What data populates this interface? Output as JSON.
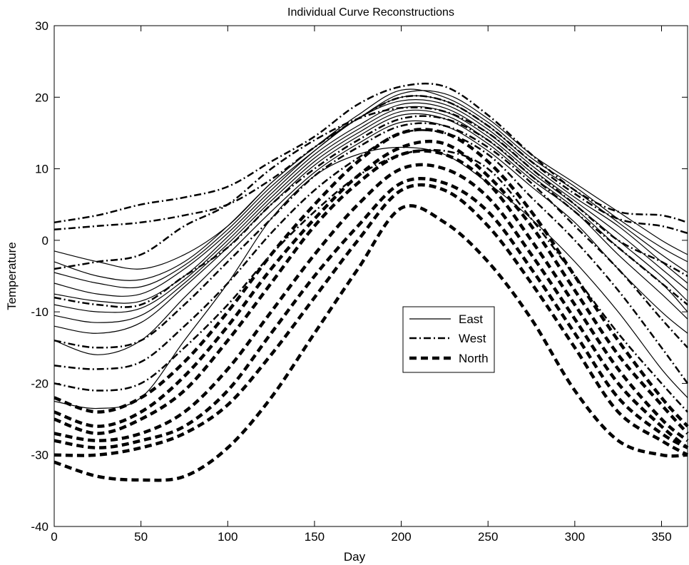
{
  "chart_data": {
    "type": "line",
    "title": "Individual Curve Reconstructions",
    "xlabel": "Day",
    "ylabel": "Temperature",
    "xlim": [
      0,
      365
    ],
    "ylim": [
      -40,
      30
    ],
    "xticks": [
      0,
      50,
      100,
      150,
      200,
      250,
      300,
      350
    ],
    "yticks": [
      -40,
      -30,
      -20,
      -10,
      0,
      10,
      20,
      30
    ],
    "grid": false,
    "legend_position": "center-right",
    "x": [
      0,
      25,
      50,
      75,
      100,
      125,
      150,
      175,
      200,
      225,
      250,
      275,
      300,
      325,
      350,
      365
    ],
    "series": [
      {
        "name": "East",
        "style": "solid",
        "color": "#000000",
        "curves": [
          [
            -1.5,
            -3,
            -4,
            -2,
            2,
            8,
            13,
            17,
            20.5,
            20.5,
            17,
            12,
            8,
            4,
            0,
            -2
          ],
          [
            -3,
            -5,
            -5.5,
            -3,
            2,
            8,
            13,
            17.5,
            21,
            20,
            16.5,
            11.5,
            7.5,
            3,
            -1,
            -3
          ],
          [
            -4.5,
            -6,
            -6.5,
            -3.5,
            1.5,
            7.5,
            12.5,
            17,
            20,
            19.5,
            16,
            11,
            7,
            2.5,
            -2,
            -4.5
          ],
          [
            -6,
            -7.5,
            -7.5,
            -4,
            1,
            7,
            12.5,
            17,
            19.5,
            19,
            15.5,
            10.5,
            6,
            2,
            -3,
            -6
          ],
          [
            -7.5,
            -8.5,
            -8.5,
            -5,
            0.5,
            6.5,
            12,
            16,
            19,
            18.5,
            15,
            10,
            5.5,
            1,
            -4,
            -7
          ],
          [
            -9,
            -10,
            -9.5,
            -5.5,
            0,
            6,
            11.5,
            15.5,
            18.5,
            18,
            14.5,
            9.5,
            5,
            0,
            -5,
            -8.5
          ],
          [
            -10.5,
            -11.5,
            -10.5,
            -6,
            -0.5,
            5.5,
            11,
            15,
            18,
            17.5,
            14,
            9,
            4.5,
            -1,
            -6,
            -10
          ],
          [
            -12,
            -13,
            -11.5,
            -6.5,
            -1,
            5,
            10.5,
            14.5,
            17.5,
            17,
            13.5,
            8.5,
            4,
            -2,
            -7.5,
            -11
          ],
          [
            -14,
            -16,
            -14,
            -8,
            -2,
            4,
            9.5,
            13.5,
            16.5,
            16,
            12.5,
            7.5,
            2.5,
            -4,
            -10,
            -13
          ],
          [
            -22.5,
            -23.5,
            -22,
            -14,
            -6,
            3,
            9,
            12,
            13,
            12,
            8,
            3,
            -3,
            -10,
            -18,
            -22
          ]
        ]
      },
      {
        "name": "West",
        "style": "dashdot",
        "color": "#000000",
        "curves": [
          [
            2.5,
            3.5,
            5,
            6,
            7.5,
            11,
            14.5,
            19,
            21.5,
            21.5,
            17.5,
            12,
            7,
            4,
            3.5,
            2.5
          ],
          [
            1.5,
            2,
            2.5,
            3.5,
            5,
            8.5,
            13,
            17,
            20,
            19.5,
            16,
            11,
            6.5,
            3,
            2,
            1
          ],
          [
            -4,
            -3,
            -2,
            2,
            5,
            10,
            14,
            17,
            18.5,
            18,
            15,
            10,
            5,
            0,
            -3,
            -5
          ],
          [
            -8,
            -9,
            -9,
            -5,
            -1,
            5,
            10,
            14,
            17,
            17,
            14,
            9,
            4,
            -1,
            -6,
            -9
          ],
          [
            -14,
            -15,
            -14,
            -9,
            -3,
            3,
            9,
            13,
            16,
            16,
            13,
            8,
            2,
            -4,
            -11,
            -15
          ],
          [
            -17.5,
            -18,
            -17,
            -12,
            -6,
            1,
            7,
            11.5,
            15,
            15,
            12,
            6,
            0,
            -7,
            -15,
            -20
          ],
          [
            -20,
            -21,
            -20,
            -15,
            -9,
            -2,
            4,
            9,
            12,
            12.5,
            10,
            3,
            -5,
            -13,
            -20,
            -24
          ]
        ]
      },
      {
        "name": "North",
        "style": "dashed",
        "color": "#000000",
        "curves": [
          [
            -22,
            -24,
            -22,
            -17,
            -10,
            -2,
            5,
            11,
            15,
            15,
            11,
            4,
            -5,
            -14,
            -22,
            -26
          ],
          [
            -24,
            -26,
            -24,
            -19,
            -12,
            -4,
            3,
            9,
            13,
            13.5,
            9,
            2,
            -7,
            -16,
            -23,
            -27
          ],
          [
            -25,
            -27,
            -25,
            -21,
            -14,
            -6,
            2,
            8,
            12,
            12,
            8,
            0,
            -9,
            -18,
            -25,
            -28
          ],
          [
            -27,
            -28,
            -27,
            -24,
            -18,
            -10,
            -2,
            5,
            10,
            10,
            6,
            -2,
            -11,
            -20,
            -26,
            -29
          ],
          [
            -28,
            -29,
            -28,
            -26,
            -21,
            -13,
            -5,
            2,
            8,
            8,
            4,
            -4,
            -13,
            -22,
            -27,
            -29
          ],
          [
            -30,
            -30,
            -29,
            -27,
            -23,
            -16,
            -8,
            0,
            7,
            7,
            2,
            -6,
            -15,
            -24,
            -28,
            -30
          ],
          [
            -31,
            -33,
            -33.5,
            -33,
            -29,
            -22,
            -13,
            -4,
            4.5,
            2.5,
            -3,
            -11,
            -21,
            -28,
            -30,
            -30
          ]
        ]
      }
    ]
  }
}
